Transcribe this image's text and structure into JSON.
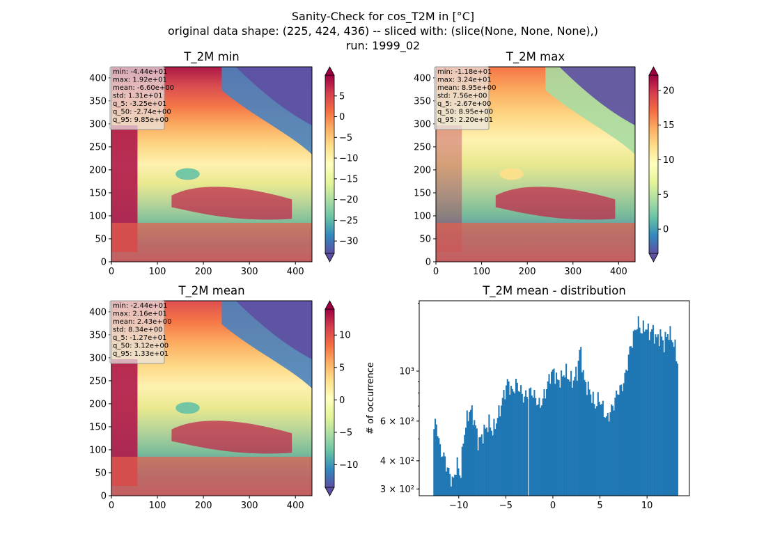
{
  "figure": {
    "title_lines": [
      "Sanity-Check for cos_T2M in [°C]",
      "original data shape: (225, 424, 436) -- sliced with: (slice(None, None, None),)",
      "run: 1999_02"
    ]
  },
  "chart_data": [
    {
      "type": "heatmap",
      "title": "T_2M min",
      "xlim": [
        0,
        436
      ],
      "ylim": [
        0,
        424
      ],
      "xticks": [
        0,
        100,
        200,
        300,
        400
      ],
      "yticks": [
        0,
        50,
        100,
        150,
        200,
        250,
        300,
        350,
        400
      ],
      "colormap": "Spectral_r",
      "colorbar": {
        "range": [
          -33,
          10
        ],
        "extend": "both",
        "ticks": [
          5,
          0,
          -5,
          -10,
          -15,
          -20,
          -25,
          -30
        ],
        "tick_labels": [
          "5",
          "0",
          "−5",
          "−10",
          "−15",
          "−20",
          "−25",
          "−30"
        ]
      },
      "stats": [
        "min: -4.44e+01",
        "max: 1.92e+01",
        "mean: -6.60e+00",
        "std: 1.31e+01",
        "q_5: -3.25e+01",
        "q_50: -2.74e+00",
        "q_95: 9.85e+00"
      ]
    },
    {
      "type": "heatmap",
      "title": "T_2M max",
      "xlim": [
        0,
        436
      ],
      "ylim": [
        0,
        424
      ],
      "xticks": [
        0,
        100,
        200,
        300,
        400
      ],
      "yticks": [
        0,
        50,
        100,
        150,
        200,
        250,
        300,
        350,
        400
      ],
      "colormap": "Spectral_r",
      "colorbar": {
        "range": [
          -3.5,
          22.2
        ],
        "extend": "both",
        "ticks": [
          20,
          15,
          10,
          5,
          0
        ],
        "tick_labels": [
          "20",
          "15",
          "10",
          "5",
          "0"
        ]
      },
      "stats": [
        "min: -1.18e+01",
        "max: 3.24e+01",
        "mean: 8.95e+00",
        "std: 7.56e+00",
        "q_5: -2.67e+00",
        "q_50: 8.95e+00",
        "q_95: 2.20e+01"
      ]
    },
    {
      "type": "heatmap",
      "title": "T_2M mean",
      "xlim": [
        0,
        436
      ],
      "ylim": [
        0,
        424
      ],
      "xticks": [
        0,
        100,
        200,
        300,
        400
      ],
      "yticks": [
        0,
        50,
        100,
        150,
        200,
        250,
        300,
        350,
        400
      ],
      "colormap": "Spectral_r",
      "colorbar": {
        "range": [
          -13.5,
          14
        ],
        "extend": "both",
        "ticks": [
          10,
          5,
          0,
          -5,
          -10
        ],
        "tick_labels": [
          "10",
          "5",
          "0",
          "−5",
          "−10"
        ]
      },
      "stats": [
        "min: -2.44e+01",
        "max: 2.16e+01",
        "mean: 2.43e+00",
        "std: 8.34e+00",
        "q_5: -1.27e+01",
        "q_50: 3.12e+00",
        "q_95: 1.33e+01"
      ]
    },
    {
      "type": "bar",
      "subtype": "histogram",
      "title": "T_2M mean - distribution",
      "ylabel": "# of occurrence",
      "xlabel": "",
      "yscale": "log",
      "color": "#1f77b4",
      "xlim": [
        -14.2,
        14.5
      ],
      "ylim": [
        280,
        2050
      ],
      "xticks": [
        -10,
        -5,
        0,
        5,
        10
      ],
      "xtick_labels": [
        "−10",
        "−5",
        "0",
        "5",
        "10"
      ],
      "yticks_major": [
        300,
        400,
        600,
        1000
      ],
      "ytick_labels": [
        "3 × 10²",
        "4 × 10²",
        "6 × 10²",
        "10³"
      ],
      "range": [
        -12.7,
        13.3
      ],
      "anchors": [
        [
          -12.7,
          540
        ],
        [
          -12.4,
          600
        ],
        [
          -12.0,
          450
        ],
        [
          -11.6,
          420
        ],
        [
          -11.2,
          370
        ],
        [
          -10.9,
          340
        ],
        [
          -10.6,
          320
        ],
        [
          -10.2,
          390
        ],
        [
          -9.8,
          340
        ],
        [
          -9.5,
          500
        ],
        [
          -9.1,
          620
        ],
        [
          -8.8,
          680
        ],
        [
          -8.5,
          640
        ],
        [
          -8.2,
          560
        ],
        [
          -7.9,
          480
        ],
        [
          -7.5,
          520
        ],
        [
          -7.1,
          560
        ],
        [
          -6.8,
          590
        ],
        [
          -6.4,
          540
        ],
        [
          -6.0,
          600
        ],
        [
          -5.6,
          680
        ],
        [
          -5.3,
          760
        ],
        [
          -4.8,
          900
        ],
        [
          -4.3,
          800
        ],
        [
          -3.9,
          880
        ],
        [
          -3.5,
          830
        ],
        [
          -3.1,
          760
        ],
        [
          -2.7,
          790
        ],
        [
          -2.3,
          820
        ],
        [
          -1.8,
          750
        ],
        [
          -1.4,
          700
        ],
        [
          -1.0,
          760
        ],
        [
          -0.6,
          860
        ],
        [
          -0.3,
          960
        ],
        [
          0.1,
          1000
        ],
        [
          0.5,
          900
        ],
        [
          0.9,
          930
        ],
        [
          1.3,
          1000
        ],
        [
          1.7,
          930
        ],
        [
          2.1,
          900
        ],
        [
          2.6,
          1000
        ],
        [
          2.9,
          1280
        ],
        [
          3.3,
          900
        ],
        [
          3.7,
          850
        ],
        [
          4.1,
          780
        ],
        [
          4.5,
          700
        ],
        [
          4.9,
          760
        ],
        [
          5.3,
          690
        ],
        [
          5.7,
          610
        ],
        [
          6.1,
          660
        ],
        [
          6.5,
          720
        ],
        [
          6.9,
          820
        ],
        [
          7.3,
          840
        ],
        [
          7.7,
          950
        ],
        [
          8.1,
          1200
        ],
        [
          8.6,
          1450
        ],
        [
          9.0,
          1650
        ],
        [
          9.4,
          1500
        ],
        [
          9.8,
          1580
        ],
        [
          10.2,
          1480
        ],
        [
          10.6,
          1520
        ],
        [
          11.0,
          1380
        ],
        [
          11.4,
          1450
        ],
        [
          11.8,
          1320
        ],
        [
          12.2,
          1480
        ],
        [
          12.6,
          1420
        ],
        [
          13.0,
          1250
        ],
        [
          13.3,
          1050
        ]
      ]
    }
  ]
}
